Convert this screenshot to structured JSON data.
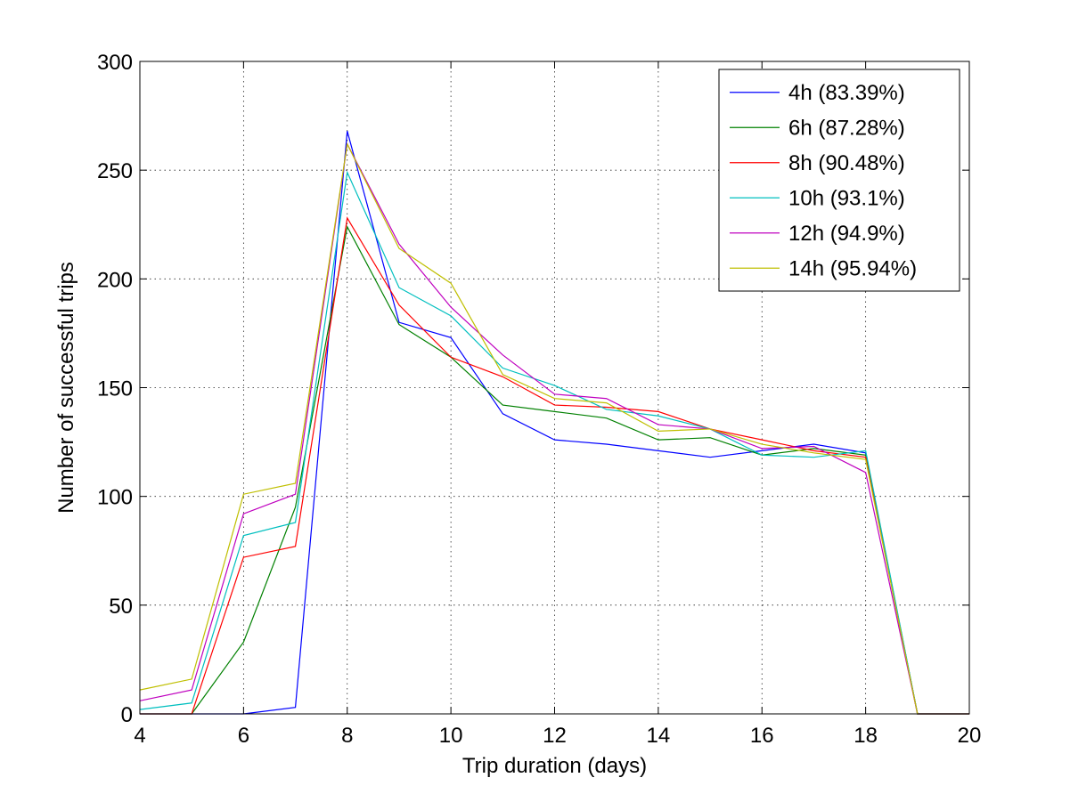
{
  "chart_data": {
    "type": "line",
    "title": "",
    "xlabel": "Trip duration (days)",
    "ylabel": "Number of successful trips",
    "xlim": [
      4,
      20
    ],
    "ylim": [
      0,
      300
    ],
    "xticks": [
      4,
      6,
      8,
      10,
      12,
      14,
      16,
      18,
      20
    ],
    "yticks": [
      0,
      50,
      100,
      150,
      200,
      250,
      300
    ],
    "grid": true,
    "legend_position": "top-right",
    "x": [
      4,
      5,
      6,
      7,
      8,
      9,
      10,
      11,
      12,
      13,
      14,
      15,
      16,
      17,
      18,
      19,
      20
    ],
    "series": [
      {
        "name": "4h (83.39%)",
        "color": "#0000ff",
        "values": [
          0,
          0,
          0,
          3,
          268,
          180,
          173,
          138,
          126,
          124,
          121,
          118,
          121,
          124,
          120,
          0,
          0
        ]
      },
      {
        "name": "6h (87.28%)",
        "color": "#008000",
        "values": [
          0,
          0,
          33,
          95,
          224,
          179,
          164,
          142,
          139,
          136,
          126,
          127,
          119,
          122,
          119,
          0,
          0
        ]
      },
      {
        "name": "8h (90.48%)",
        "color": "#ff0000",
        "values": [
          0,
          0,
          72,
          77,
          228,
          188,
          164,
          155,
          142,
          141,
          139,
          131,
          126,
          121,
          118,
          0,
          0
        ]
      },
      {
        "name": "10h (93.1%)",
        "color": "#00bfbf",
        "values": [
          2,
          5,
          82,
          88,
          249,
          196,
          183,
          159,
          151,
          140,
          137,
          131,
          119,
          118,
          121,
          0,
          0
        ]
      },
      {
        "name": "12h (94.9%)",
        "color": "#bf00bf",
        "values": [
          6,
          11,
          92,
          101,
          262,
          216,
          187,
          165,
          147,
          145,
          133,
          131,
          122,
          123,
          111,
          0,
          0
        ]
      },
      {
        "name": "14h (95.94%)",
        "color": "#bfbf00",
        "values": [
          11,
          16,
          101,
          106,
          262,
          214,
          198,
          156,
          145,
          143,
          130,
          131,
          124,
          120,
          117,
          0,
          0
        ]
      }
    ]
  }
}
